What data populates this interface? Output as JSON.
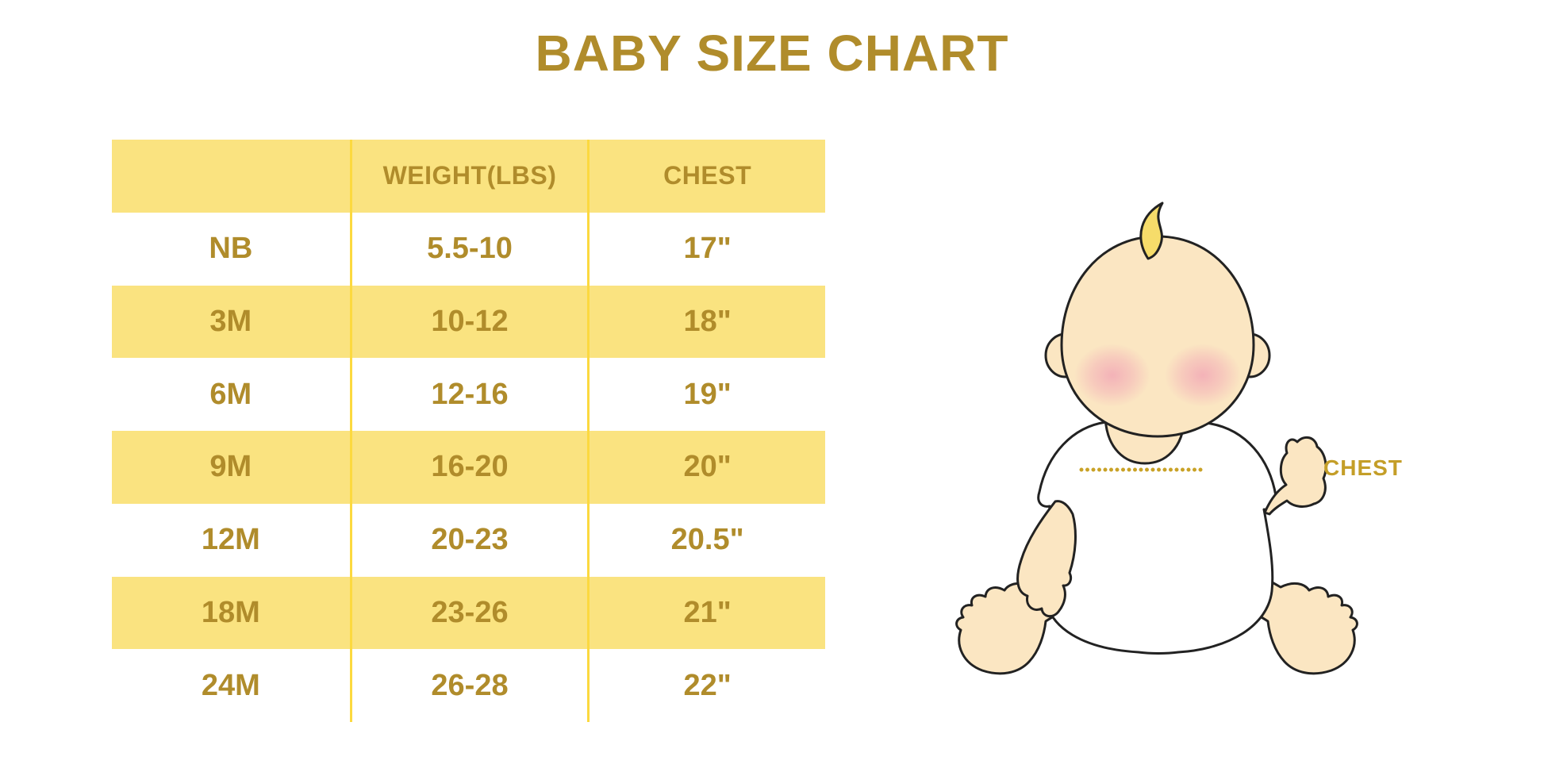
{
  "page": {
    "title": "BABY SIZE CHART"
  },
  "chart_data": {
    "type": "table",
    "title": "BABY SIZE CHART",
    "columns": [
      "",
      "WEIGHT(LBS)",
      "CHEST"
    ],
    "rows": [
      [
        "NB",
        "5.5-10",
        "17\""
      ],
      [
        "3M",
        "10-12",
        "18\""
      ],
      [
        "6M",
        "12-16",
        "19\""
      ],
      [
        "9M",
        "16-20",
        "20\""
      ],
      [
        "12M",
        "20-23",
        "20.5\""
      ],
      [
        "18M",
        "23-26",
        "21\""
      ],
      [
        "24M",
        "26-28",
        "22\""
      ]
    ],
    "layout": {
      "striped": true,
      "header_and_odd_rows": "yellow band",
      "stripe_color": "#FAE380",
      "column_divider_color": "#FCD93F",
      "text_color": "#B08C2B"
    }
  },
  "illustration": {
    "description": "sitting cartoon baby with dotted chest measurement line",
    "chest_label": "CHEST"
  },
  "colors": {
    "title_gold": "#B08C2B",
    "row_yellow": "#FAE380",
    "divider_yellow": "#FCD93F",
    "chest_gold": "#C49E28",
    "dotted_line_gold": "#C9A227",
    "skin": "#FBE6C2",
    "hair_yellow": "#F6DC6A",
    "blush_pink": "#F2A9B6",
    "outline": "#222222",
    "shirt_white": "#FFFFFF"
  }
}
